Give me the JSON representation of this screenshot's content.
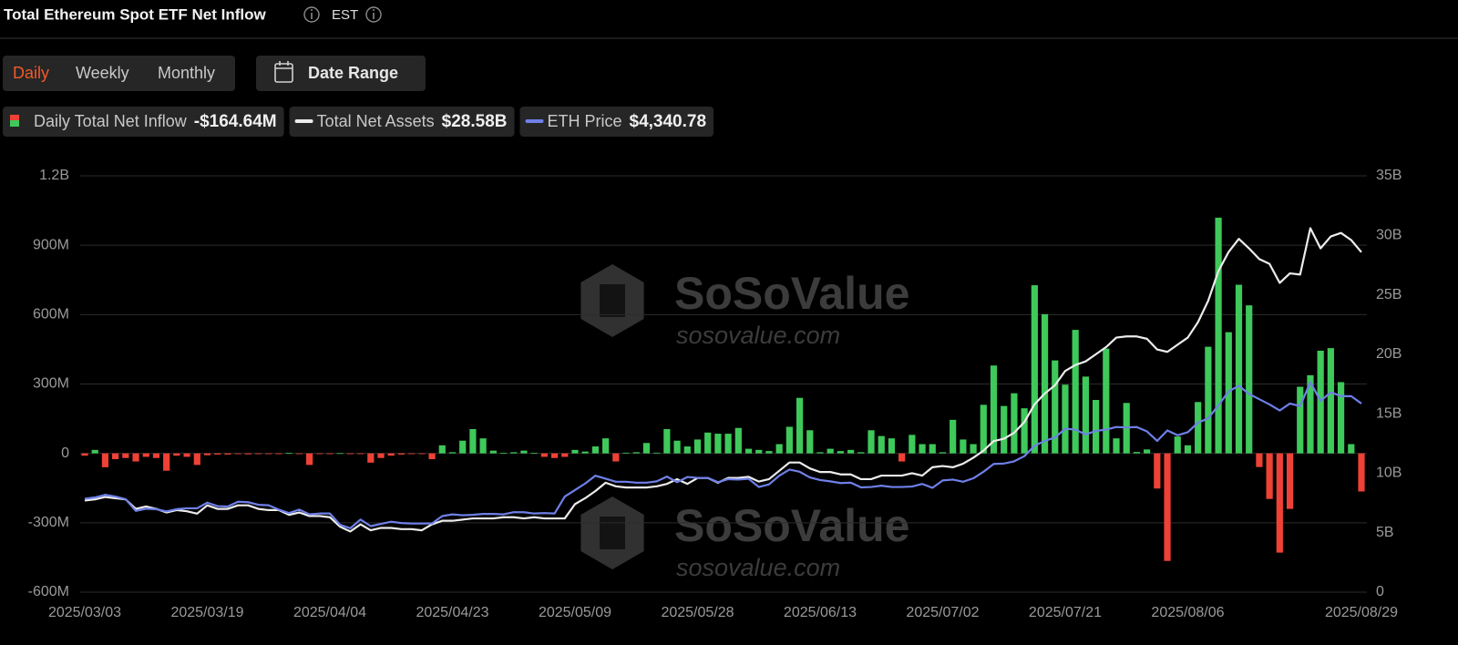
{
  "header": {
    "title": "Total Ethereum Spot ETF Net Inflow",
    "timezone": "EST"
  },
  "controls": {
    "tabs": [
      "Daily",
      "Weekly",
      "Monthly"
    ],
    "active_tab": 0,
    "date_range": "Date Range"
  },
  "chart_data": {
    "type": "combo",
    "categories": [
      "2025/03/03",
      null,
      null,
      null,
      null,
      null,
      null,
      null,
      null,
      null,
      null,
      null,
      "2025/03/19",
      null,
      null,
      null,
      null,
      null,
      null,
      null,
      null,
      null,
      null,
      null,
      "2025/04/04",
      null,
      null,
      null,
      null,
      null,
      null,
      null,
      null,
      null,
      null,
      null,
      "2025/04/23",
      null,
      null,
      null,
      null,
      null,
      null,
      null,
      null,
      null,
      null,
      null,
      "2025/05/09",
      null,
      null,
      null,
      null,
      null,
      null,
      null,
      null,
      null,
      null,
      null,
      "2025/05/28",
      null,
      null,
      null,
      null,
      null,
      null,
      null,
      null,
      null,
      null,
      null,
      "2025/06/13",
      null,
      null,
      null,
      null,
      null,
      null,
      null,
      null,
      null,
      null,
      null,
      "2025/07/02",
      null,
      null,
      null,
      null,
      null,
      null,
      null,
      null,
      null,
      null,
      null,
      "2025/07/21",
      null,
      null,
      null,
      null,
      null,
      null,
      null,
      null,
      null,
      null,
      null,
      "2025/08/06",
      null,
      null,
      null,
      null,
      null,
      null,
      null,
      null,
      null,
      null,
      null,
      null,
      null,
      null,
      null,
      null,
      "2025/08/29"
    ],
    "series": [
      {
        "name": "Daily Total Net Inflow",
        "type": "bar",
        "color_positive": "#3ec95a",
        "color_negative": "#ef4136",
        "current_label": "-$164.64M",
        "values": [
          -10,
          15,
          -60,
          -25,
          -20,
          -35,
          -15,
          -20,
          -75,
          -10,
          -15,
          -50,
          -8,
          -5,
          -5,
          -3,
          -4,
          -3,
          -3,
          -2,
          2,
          -3,
          -50,
          -2,
          -2,
          1,
          -3,
          -3,
          -40,
          -20,
          -10,
          -5,
          -3,
          -2,
          -25,
          35,
          5,
          55,
          105,
          65,
          12,
          2,
          5,
          12,
          2,
          -15,
          -20,
          -15,
          15,
          8,
          30,
          65,
          -35,
          3,
          5,
          45,
          3,
          105,
          55,
          30,
          60,
          90,
          85,
          85,
          110,
          20,
          15,
          10,
          40,
          115,
          240,
          100,
          5,
          20,
          10,
          15,
          5,
          100,
          75,
          65,
          -35,
          80,
          40,
          40,
          5,
          145,
          60,
          40,
          210,
          380,
          205,
          260,
          195,
          727,
          602,
          402,
          297,
          534,
          332,
          231,
          453,
          65,
          218,
          6,
          17,
          -152,
          -465,
          73,
          35,
          222,
          461,
          1019,
          524,
          729,
          640,
          -59,
          -197,
          -429,
          -240,
          288,
          338,
          444,
          455,
          308,
          40,
          -164.64
        ]
      },
      {
        "name": "Total Net Assets",
        "type": "line",
        "axis": "y2",
        "color": "#ececec",
        "current_label": "$28.58B",
        "values": [
          7.7,
          7.8,
          8.0,
          7.9,
          7.8,
          7.0,
          7.2,
          7.0,
          6.7,
          6.9,
          6.8,
          6.6,
          7.3,
          7.0,
          7.0,
          7.3,
          7.3,
          7.0,
          6.9,
          6.9,
          6.5,
          6.7,
          6.4,
          6.4,
          6.3,
          5.5,
          5.1,
          5.7,
          5.2,
          5.4,
          5.4,
          5.3,
          5.3,
          5.2,
          5.7,
          6.0,
          6.0,
          6.1,
          6.2,
          6.2,
          6.2,
          6.3,
          6.3,
          6.2,
          6.3,
          6.2,
          6.2,
          6.2,
          7.4,
          7.9,
          8.5,
          9.2,
          8.9,
          8.8,
          8.8,
          8.8,
          8.9,
          9.1,
          9.5,
          9.1,
          9.6,
          9.6,
          9.2,
          9.6,
          9.6,
          9.7,
          9.3,
          9.5,
          10.2,
          10.9,
          10.9,
          10.4,
          10.1,
          10.1,
          9.9,
          9.9,
          9.5,
          9.5,
          9.8,
          9.8,
          9.8,
          10.0,
          9.8,
          10.5,
          10.6,
          10.5,
          10.8,
          11.3,
          11.9,
          12.7,
          12.9,
          13.4,
          14.3,
          15.8,
          16.7,
          17.4,
          18.6,
          19.1,
          19.4,
          20.0,
          20.6,
          21.4,
          21.5,
          21.5,
          21.3,
          20.4,
          20.2,
          20.8,
          21.4,
          22.7,
          24.5,
          27.0,
          28.6,
          29.7,
          28.9,
          28.0,
          27.6,
          26.0,
          26.8,
          26.7,
          30.6,
          28.9,
          29.9,
          30.2,
          29.6,
          28.58
        ]
      },
      {
        "name": "ETH Price",
        "type": "line",
        "axis": "y3",
        "color": "#6f80e8",
        "current_label": "$4,340.78",
        "values": [
          2150,
          2180,
          2240,
          2200,
          2140,
          1870,
          1920,
          1910,
          1860,
          1910,
          1930,
          1930,
          2060,
          1980,
          1970,
          2080,
          2070,
          2010,
          2000,
          1900,
          1820,
          1900,
          1790,
          1810,
          1810,
          1550,
          1470,
          1670,
          1520,
          1570,
          1620,
          1590,
          1580,
          1580,
          1580,
          1750,
          1790,
          1770,
          1780,
          1800,
          1800,
          1790,
          1840,
          1840,
          1810,
          1820,
          1810,
          2200,
          2350,
          2500,
          2680,
          2610,
          2540,
          2540,
          2520,
          2520,
          2550,
          2660,
          2530,
          2650,
          2630,
          2630,
          2530,
          2600,
          2590,
          2610,
          2420,
          2480,
          2680,
          2820,
          2770,
          2640,
          2580,
          2550,
          2510,
          2520,
          2410,
          2420,
          2450,
          2420,
          2420,
          2430,
          2490,
          2400,
          2570,
          2590,
          2540,
          2620,
          2770,
          2950,
          2960,
          3010,
          3130,
          3370,
          3480,
          3560,
          3760,
          3740,
          3630,
          3710,
          3740,
          3800,
          3790,
          3800,
          3700,
          3480,
          3720,
          3610,
          3680,
          3900,
          4000,
          4300,
          4620,
          4750,
          4560,
          4440,
          4320,
          4180,
          4340,
          4280,
          4830,
          4400,
          4600,
          4510,
          4510,
          4340.78
        ]
      }
    ],
    "ylim": [
      -600,
      1200
    ],
    "yticks": [
      {
        "value": -600,
        "label": "-600M"
      },
      {
        "value": -300,
        "label": "-300M"
      },
      0,
      {
        "value": 300,
        "label": "300M"
      },
      {
        "value": 600,
        "label": "600M"
      },
      {
        "value": 900,
        "label": "900M"
      },
      {
        "value": 1200,
        "label": "1.2B"
      }
    ],
    "y2lim": [
      0,
      35
    ],
    "y2ticks": [
      0,
      {
        "value": 5,
        "label": "5B"
      },
      {
        "value": 10,
        "label": "10B"
      },
      {
        "value": 15,
        "label": "15B"
      },
      {
        "value": 20,
        "label": "20B"
      },
      {
        "value": 25,
        "label": "25B"
      },
      {
        "value": 30,
        "label": "30B"
      },
      {
        "value": 35,
        "label": "35B"
      }
    ],
    "y3lim": [
      0,
      9580
    ],
    "grid": true,
    "watermark": {
      "text": "SoSoValue",
      "url": "sosovalue.com"
    }
  }
}
